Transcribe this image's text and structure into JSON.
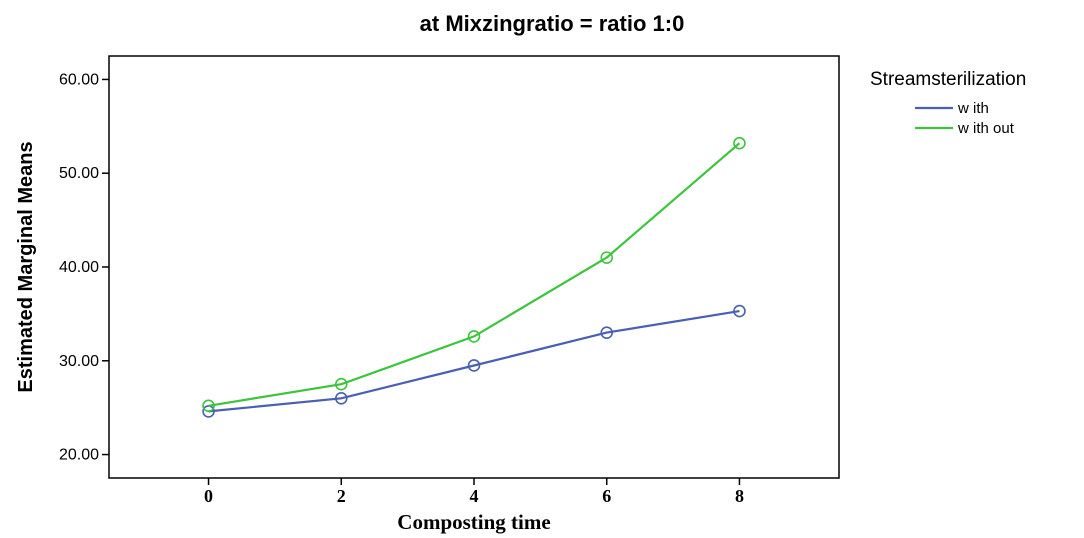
{
  "chart_data": {
    "type": "line",
    "title": "at Mixzingratio = ratio 1:0",
    "xlabel": "Composting time",
    "ylabel": "Estimated Marginal Means",
    "x": [
      0,
      2,
      4,
      6,
      8
    ],
    "x_tick_labels": [
      "0",
      "2",
      "4",
      "6",
      "8"
    ],
    "xlim": [
      -1.5,
      9.5
    ],
    "ylim": [
      17.5,
      62.5
    ],
    "y_ticks": [
      20,
      30,
      40,
      50,
      60
    ],
    "y_tick_labels": [
      "20.00",
      "30.00",
      "40.00",
      "50.00",
      "60.00"
    ],
    "grid": false,
    "legend_title": "Streamsterilization",
    "legend_position": "right",
    "series": [
      {
        "name": "w ith",
        "color": "#4A5FB4",
        "values": [
          24.6,
          26.0,
          29.5,
          33.0,
          35.3
        ]
      },
      {
        "name": "w ith out",
        "color": "#3DC43D",
        "values": [
          25.2,
          27.5,
          32.6,
          41.0,
          53.2
        ]
      }
    ]
  }
}
